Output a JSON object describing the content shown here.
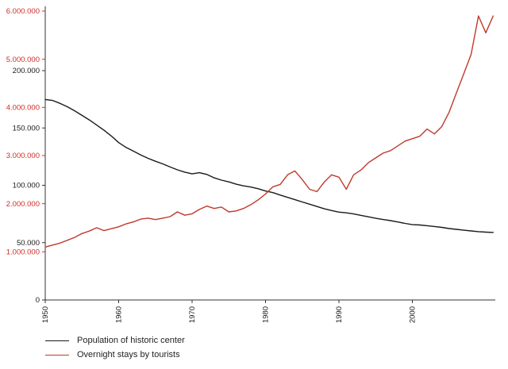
{
  "chart_data": {
    "type": "line",
    "title": "",
    "xlabel": "",
    "ylabel": "",
    "axis_color": "#333333",
    "background": "#ffffff",
    "x_ticks": [
      "1950",
      "1960",
      "1970",
      "1980",
      "1990",
      "2000"
    ],
    "years": [
      1950,
      1951,
      1952,
      1953,
      1954,
      1955,
      1956,
      1957,
      1958,
      1959,
      1960,
      1961,
      1962,
      1963,
      1964,
      1965,
      1966,
      1967,
      1968,
      1969,
      1970,
      1971,
      1972,
      1973,
      1974,
      1975,
      1976,
      1977,
      1978,
      1979,
      1980,
      1981,
      1982,
      1983,
      1984,
      1985,
      1986,
      1987,
      1988,
      1989,
      1990,
      1991,
      1992,
      1993,
      1994,
      1995,
      1996,
      1997,
      1998,
      1999,
      2000,
      2001,
      2002,
      2003,
      2004,
      2005,
      2006,
      2007,
      2008,
      2009,
      2010,
      2011
    ],
    "y_axis_population": {
      "color": "#1a1a1a",
      "ticks": [
        0,
        50000,
        100000,
        150000,
        200000
      ],
      "labels": [
        "0",
        "50.000",
        "100.000",
        "150.000",
        "200.000"
      ],
      "max": 200000
    },
    "y_axis_tourists": {
      "color": "#cc2f2a",
      "ticks": [
        1000000,
        2000000,
        3000000,
        4000000,
        5000000,
        6000000
      ],
      "labels": [
        "1.000.000",
        "2.000.000",
        "3.000.000",
        "4.000.000",
        "5.000.000",
        "6.000.000"
      ],
      "max": 6000000
    },
    "series": [
      {
        "name": "Population of historic center",
        "data_name": "population-line",
        "color": "#1a1a1a",
        "axis": "population",
        "values": [
          174800,
          174000,
          171500,
          168500,
          165000,
          161000,
          157000,
          152500,
          148000,
          143000,
          137200,
          133000,
          129800,
          126500,
          123500,
          121000,
          118700,
          116000,
          113500,
          111500,
          110000,
          111000,
          109500,
          106500,
          104500,
          103000,
          101000,
          99500,
          98500,
          97000,
          95000,
          93600,
          91500,
          89500,
          87500,
          85500,
          83500,
          81500,
          79500,
          78000,
          76600,
          76000,
          75000,
          73800,
          72500,
          71200,
          70200,
          69200,
          68000,
          66800,
          65700,
          65400,
          64800,
          64100,
          63300,
          62300,
          61600,
          60800,
          60200,
          59600,
          59200,
          58900
        ]
      },
      {
        "name": "Overnight stays by tourists",
        "data_name": "tourists-line",
        "color": "#c0392b",
        "axis": "tourists",
        "values": [
          1100000,
          1140000,
          1180000,
          1240000,
          1300000,
          1380000,
          1430000,
          1500000,
          1440000,
          1480000,
          1520000,
          1580000,
          1620000,
          1680000,
          1700000,
          1670000,
          1700000,
          1730000,
          1830000,
          1760000,
          1790000,
          1880000,
          1950000,
          1900000,
          1930000,
          1830000,
          1850000,
          1900000,
          1980000,
          2080000,
          2200000,
          2350000,
          2400000,
          2600000,
          2680000,
          2500000,
          2300000,
          2250000,
          2450000,
          2600000,
          2550000,
          2300000,
          2600000,
          2700000,
          2850000,
          2950000,
          3050000,
          3100000,
          3200000,
          3300000,
          3350000,
          3400000,
          3550000,
          3450000,
          3600000,
          3900000,
          4300000,
          4700000,
          5100000,
          5900000,
          5550000,
          5900000
        ]
      }
    ],
    "legend": {
      "position": "bottom-left",
      "entries": [
        "Population of historic center",
        "Overnight stays by tourists"
      ]
    }
  }
}
